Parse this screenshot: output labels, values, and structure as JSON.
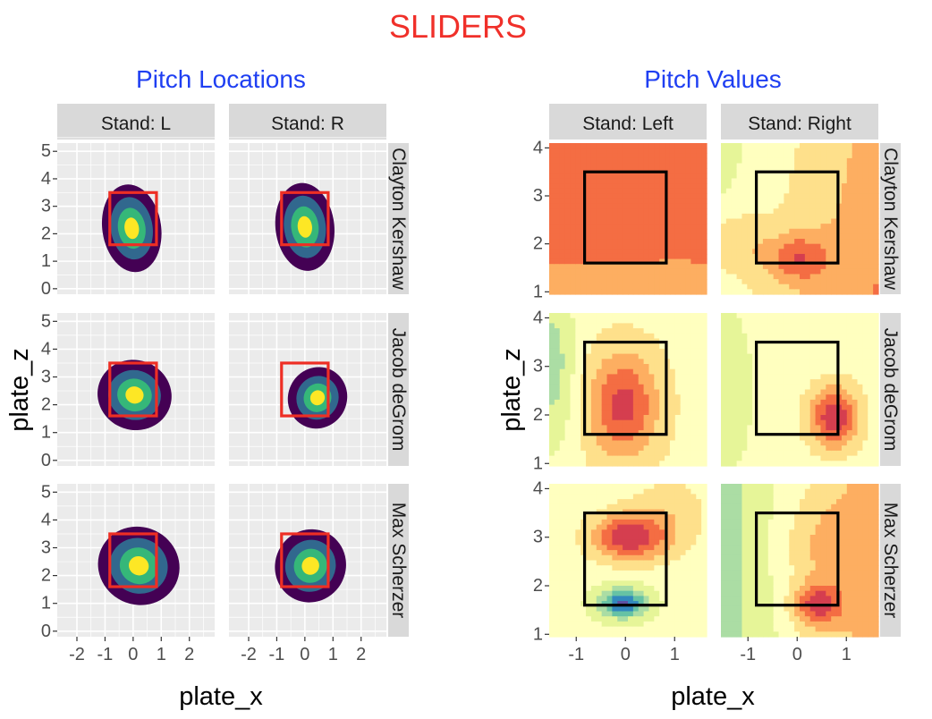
{
  "main_title": "SLIDERS",
  "colors": {
    "title": "#f0302a",
    "subtitle": "#1f3ff2",
    "panel_bg": "#ebebeb",
    "strip_bg": "#d9d9d9",
    "zone_left": "#ee2e24",
    "zone_right": "#000000",
    "viridis": [
      "#440154",
      "#31688e",
      "#35b779",
      "#fde725"
    ],
    "spectral": [
      "#5e4fa2",
      "#3288bd",
      "#66c2a5",
      "#abdda4",
      "#e6f598",
      "#ffffbf",
      "#fee08b",
      "#fdae61",
      "#f46d43",
      "#d53e4f"
    ]
  },
  "chart_data": [
    {
      "type": "heatmap",
      "subtitle": "Pitch Locations",
      "xlabel": "plate_x",
      "ylabel": "plate_z",
      "xlim": [
        -2.7,
        2.9
      ],
      "ylim": [
        -0.2,
        5.3
      ],
      "x_ticks": [
        -2,
        -1,
        0,
        1,
        2
      ],
      "y_ticks": [
        0,
        1,
        2,
        3,
        4,
        5
      ],
      "col_facets": [
        "Stand: L",
        "Stand: R"
      ],
      "row_facets": [
        "Clayton Kershaw",
        "Jacob deGrom",
        "Max Scherzer"
      ],
      "strike_zone": {
        "x": [
          -0.83,
          0.83
        ],
        "z": [
          1.6,
          3.5
        ]
      },
      "density_levels": 4,
      "panels": [
        [
          {
            "cx": -0.05,
            "cz": 2.2,
            "sx": 0.75,
            "sz": 1.15,
            "rho": 0.2
          },
          {
            "cx": 0.0,
            "cz": 2.25,
            "sx": 0.75,
            "sz": 1.15,
            "rho": 0.15
          }
        ],
        [
          {
            "cx": 0.05,
            "cz": 2.35,
            "sx": 0.95,
            "sz": 0.9,
            "rho": -0.45
          },
          {
            "cx": 0.45,
            "cz": 2.25,
            "sx": 0.75,
            "sz": 0.8,
            "rho": -0.6
          }
        ],
        [
          {
            "cx": 0.2,
            "cz": 2.35,
            "sx": 1.05,
            "sz": 1.0,
            "rho": -0.6
          },
          {
            "cx": 0.2,
            "cz": 2.35,
            "sx": 0.9,
            "sz": 0.95,
            "rho": -0.6
          }
        ]
      ]
    },
    {
      "type": "heatmap",
      "subtitle": "Pitch Values",
      "xlabel": "plate_x",
      "ylabel": "plate_z",
      "xlim": [
        -1.55,
        1.65
      ],
      "ylim": [
        0.95,
        4.1
      ],
      "x_ticks": [
        -1,
        0,
        1
      ],
      "y_ticks": [
        1,
        2,
        3,
        4
      ],
      "col_facets": [
        "Stand: Left",
        "Stand: Right"
      ],
      "row_facets": [
        "Clayton Kershaw",
        "Jacob deGrom",
        "Max Scherzer"
      ],
      "strike_zone": {
        "x": [
          -0.83,
          0.83
        ],
        "z": [
          1.6,
          3.5
        ]
      },
      "panels": [
        [
          {
            "base": 7.6,
            "slope_x": 0,
            "slope_z": 0,
            "spots": [
              {
                "x": -0.1,
                "z": 2.5,
                "sx": 0.5,
                "sz": 0.6,
                "a": 0.7
              },
              {
                "x": 0,
                "z": 1.0,
                "sx": 1.2,
                "sz": 0.35,
                "a": -1.0
              }
            ]
          },
          {
            "base": 5.8,
            "slope_x": 0.9,
            "slope_z": -0.2,
            "spots": [
              {
                "x": 0.0,
                "z": 1.7,
                "sx": 0.45,
                "sz": 0.35,
                "a": 2.6
              },
              {
                "x": -1.3,
                "z": 2.0,
                "sx": 0.5,
                "sz": 0.5,
                "a": 1.5
              }
            ]
          }
        ],
        [
          {
            "base": 5.2,
            "slope_x": 0,
            "slope_z": 0,
            "spots": [
              {
                "x": -0.05,
                "z": 2.2,
                "sx": 0.5,
                "sz": 0.75,
                "a": 3.7
              },
              {
                "x": -1.5,
                "z": 3.0,
                "sx": 0.35,
                "sz": 1.2,
                "a": -2.2
              }
            ]
          },
          {
            "base": 5.0,
            "slope_x": 0,
            "slope_z": 0,
            "spots": [
              {
                "x": 0.75,
                "z": 1.95,
                "sx": 0.35,
                "sz": 0.45,
                "a": 4.3
              },
              {
                "x": -1.4,
                "z": 2.5,
                "sx": 0.35,
                "sz": 1.2,
                "a": -1.3
              }
            ]
          }
        ],
        [
          {
            "base": 4.8,
            "slope_x": 0,
            "slope_z": 0,
            "spots": [
              {
                "x": 0.05,
                "z": 3.0,
                "sx": 0.55,
                "sz": 0.35,
                "a": 4.3
              },
              {
                "x": -0.05,
                "z": 1.65,
                "sx": 0.35,
                "sz": 0.22,
                "a": -4.4
              },
              {
                "x": 0.9,
                "z": 3.5,
                "sx": 0.6,
                "sz": 0.6,
                "a": 1.2
              }
            ]
          },
          {
            "base": 5.0,
            "slope_x": 1.3,
            "slope_z": 0,
            "spots": [
              {
                "x": 0.4,
                "z": 1.6,
                "sx": 0.35,
                "sz": 0.3,
                "a": 3.5
              },
              {
                "x": 0.5,
                "z": 2.8,
                "sx": 0.6,
                "sz": 0.7,
                "a": 1.2
              }
            ]
          }
        ]
      ]
    }
  ]
}
